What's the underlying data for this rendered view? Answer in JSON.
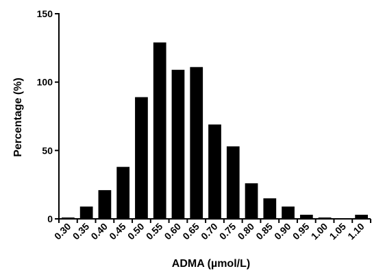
{
  "chart_data": {
    "type": "bar",
    "categories": [
      "0.30",
      "0.35",
      "0.40",
      "0.45",
      "0.50",
      "0.55",
      "0.60",
      "0.65",
      "0.70",
      "0.75",
      "0.80",
      "0.85",
      "0.90",
      "0.95",
      "1.00",
      "1.05",
      "1.10"
    ],
    "values": [
      1,
      9,
      21,
      38,
      89,
      129,
      109,
      111,
      69,
      53,
      26,
      15,
      9,
      3,
      1,
      0,
      3
    ],
    "title": "",
    "xlabel": "ADMA (µmol/L)",
    "ylabel": "Percentage (%)",
    "ylim": [
      0,
      150
    ],
    "yticks": [
      0,
      50,
      100,
      150
    ],
    "grid": false,
    "colors": {
      "bar": "#000000",
      "axis": "#000000"
    }
  }
}
